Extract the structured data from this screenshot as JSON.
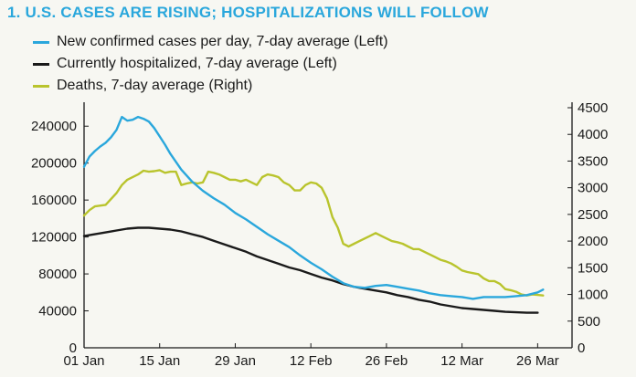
{
  "chart_data": {
    "type": "line",
    "title": "1. U.S. CASES ARE RISING; HOSPITALIZATIONS WILL FOLLOW",
    "x_tick_labels": [
      "01 Jan",
      "15 Jan",
      "29 Jan",
      "12 Feb",
      "26 Feb",
      "12 Mar",
      "26 Mar"
    ],
    "x_days_from_jan1": [
      0,
      14,
      28,
      42,
      56,
      70,
      84
    ],
    "xlim": [
      0,
      88
    ],
    "left_axis": {
      "ylim": [
        0,
        260000
      ],
      "ticks": [
        0,
        40000,
        80000,
        120000,
        160000,
        200000,
        240000
      ]
    },
    "right_axis": {
      "ylim": [
        0,
        4500
      ],
      "ticks": [
        0,
        500,
        1000,
        1500,
        2000,
        2500,
        3000,
        3500,
        4000,
        4500
      ]
    },
    "colors": {
      "cases": "#2aa7dc",
      "hosp": "#1a1a1a",
      "deaths": "#b9c42d",
      "title": "#2aa7dc"
    },
    "series": [
      {
        "name": "New confirmed cases per day, 7-day average (Left)",
        "key": "cases",
        "axis": "left",
        "x": [
          0,
          1,
          2,
          3,
          4,
          5,
          6,
          7,
          8,
          9,
          10,
          11,
          12,
          13,
          14,
          15,
          16,
          18,
          20,
          22,
          24,
          26,
          28,
          30,
          32,
          34,
          36,
          38,
          40,
          42,
          44,
          46,
          48,
          50,
          52,
          54,
          56,
          58,
          60,
          62,
          64,
          66,
          68,
          70,
          72,
          74,
          76,
          78,
          80,
          82,
          84,
          85
        ],
        "values": [
          196000,
          207000,
          213000,
          218000,
          222000,
          228000,
          236000,
          250000,
          246000,
          247000,
          250000,
          248000,
          245000,
          238000,
          229000,
          220000,
          210000,
          193000,
          180000,
          170000,
          162000,
          155000,
          146000,
          139000,
          131000,
          123000,
          116000,
          109000,
          100000,
          92000,
          85000,
          77000,
          70000,
          66000,
          65000,
          67000,
          68000,
          66000,
          64000,
          62000,
          59000,
          57000,
          56000,
          55000,
          53000,
          55000,
          55000,
          55000,
          56000,
          57000,
          60000,
          63000
        ]
      },
      {
        "name": "Currently hospitalized, 7-day average (Left)",
        "key": "hosp",
        "axis": "left",
        "x": [
          0,
          2,
          4,
          6,
          8,
          10,
          12,
          14,
          16,
          18,
          20,
          22,
          24,
          26,
          28,
          30,
          32,
          34,
          36,
          38,
          40,
          42,
          44,
          46,
          48,
          50,
          52,
          54,
          56,
          58,
          60,
          62,
          64,
          66,
          68,
          70,
          72,
          74,
          76,
          78,
          80,
          82,
          84
        ],
        "values": [
          121000,
          123000,
          125000,
          127000,
          129000,
          130000,
          130000,
          129000,
          128000,
          126000,
          123000,
          120000,
          116000,
          112000,
          108000,
          104000,
          99000,
          95000,
          91000,
          87000,
          84000,
          80000,
          76000,
          73000,
          69000,
          66000,
          64000,
          62000,
          60000,
          57000,
          55000,
          52000,
          50000,
          47000,
          45000,
          43000,
          42000,
          41000,
          40000,
          39000,
          38500,
          38000,
          38000
        ]
      },
      {
        "name": "Deaths, 7-day average (Right)",
        "key": "deaths",
        "axis": "right",
        "x": [
          0,
          1,
          2,
          4,
          6,
          7,
          8,
          10,
          11,
          12,
          13,
          14,
          15,
          16,
          17,
          18,
          19,
          20,
          21,
          22,
          23,
          24,
          25,
          26,
          27,
          28,
          29,
          30,
          31,
          32,
          33,
          34,
          35,
          36,
          37,
          38,
          39,
          40,
          41,
          42,
          43,
          44,
          45,
          46,
          47,
          48,
          49,
          50,
          51,
          52,
          53,
          54,
          55,
          56,
          57,
          58,
          59,
          60,
          61,
          62,
          63,
          64,
          65,
          66,
          67,
          68,
          69,
          70,
          71,
          72,
          73,
          74,
          75,
          76,
          77,
          78,
          79,
          80,
          81,
          82,
          83,
          84,
          85
        ],
        "values": [
          2480,
          2580,
          2650,
          2680,
          2900,
          3050,
          3150,
          3250,
          3320,
          3300,
          3310,
          3330,
          3280,
          3300,
          3300,
          3050,
          3080,
          3100,
          3080,
          3100,
          3300,
          3280,
          3250,
          3200,
          3150,
          3150,
          3120,
          3150,
          3100,
          3050,
          3200,
          3250,
          3230,
          3200,
          3100,
          3050,
          2950,
          2950,
          3050,
          3100,
          3080,
          3000,
          2800,
          2450,
          2250,
          1950,
          1900,
          1950,
          2000,
          2050,
          2100,
          2150,
          2100,
          2050,
          2000,
          1980,
          1950,
          1900,
          1850,
          1850,
          1800,
          1750,
          1700,
          1650,
          1620,
          1580,
          1520,
          1450,
          1420,
          1400,
          1380,
          1300,
          1250,
          1250,
          1200,
          1100,
          1080,
          1050,
          1000,
          980,
          1000,
          990,
          980
        ]
      }
    ]
  }
}
